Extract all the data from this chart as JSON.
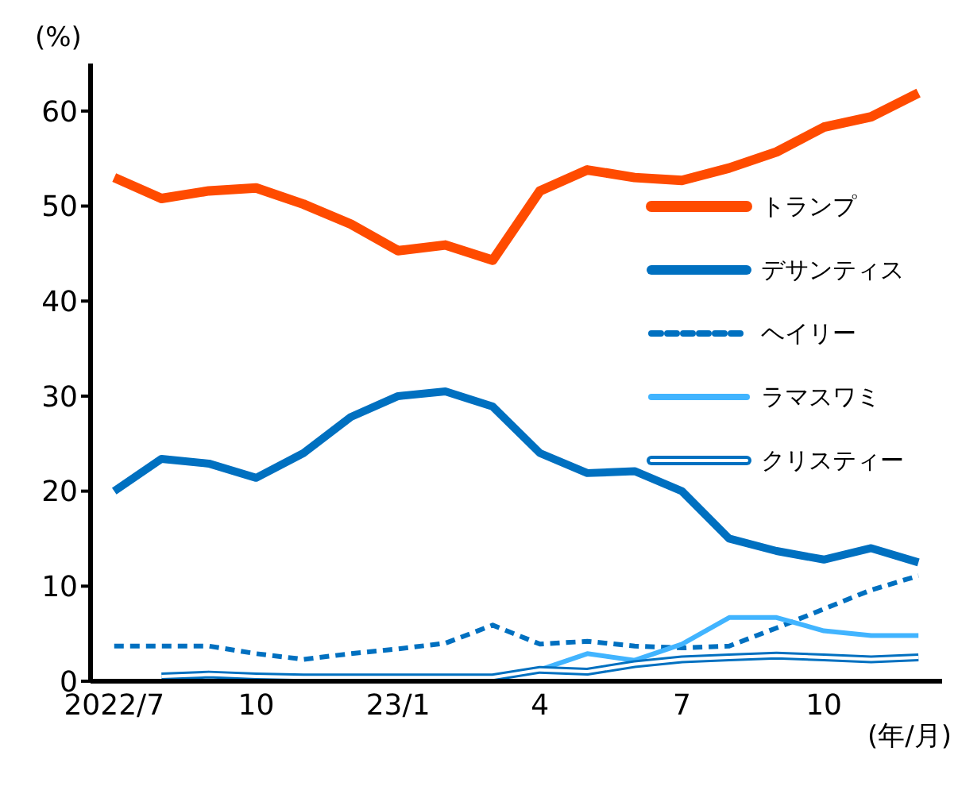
{
  "chart_data": {
    "type": "line",
    "ylabel": "(%)",
    "xlabel": "(年/月)",
    "categories": [
      "2022/7",
      null,
      null,
      "10",
      null,
      null,
      "23/1",
      null,
      null,
      "4",
      null,
      null,
      "7",
      null,
      null,
      "10",
      null,
      null
    ],
    "series": [
      {
        "name": "トランプ",
        "color": "#ff4b00",
        "values": [
          53,
          50.8,
          51.6,
          51.9,
          50.2,
          48.1,
          45.3,
          45.9,
          44.3,
          51.6,
          53.8,
          53,
          52.7,
          54,
          55.7,
          58.3,
          59.4,
          61.9
        ]
      },
      {
        "name": "デサンティス",
        "color": "#0070c0",
        "values": [
          20,
          23.4,
          22.9,
          21.4,
          24,
          27.8,
          30,
          30.5,
          28.9,
          24,
          21.9,
          22.1,
          20,
          15,
          13.7,
          12.8,
          14,
          12.5
        ]
      },
      {
        "name": "ヘイリー",
        "color": "#0070c0",
        "line_style": "dashed",
        "values": [
          3.7,
          3.7,
          3.7,
          2.9,
          2.3,
          2.9,
          3.4,
          4,
          5.9,
          3.9,
          4.2,
          3.7,
          3.5,
          3.7,
          5.6,
          7.6,
          9.6,
          11.1
        ]
      },
      {
        "name": "ラマスワミ",
        "color": "#41b4ff",
        "values": [
          null,
          null,
          null,
          null,
          null,
          null,
          null,
          null,
          0.3,
          1.2,
          2.9,
          2.2,
          3.9,
          6.7,
          6.7,
          5.3,
          4.8,
          4.8
        ]
      },
      {
        "name": "クリスティー",
        "color": "#0070c0",
        "values": [
          null,
          0.5,
          0.7,
          0.5,
          0.4,
          0.4,
          0.4,
          0.4,
          0.4,
          1.2,
          1.0,
          1.8,
          2.3,
          2.5,
          2.7,
          2.5,
          2.3,
          2.5
        ]
      }
    ],
    "ylim": [
      0,
      65
    ],
    "yticks": [
      0,
      10,
      20,
      30,
      40,
      50,
      60
    ],
    "grid": false,
    "legend": "right",
    "marker": "none",
    "line_style": "solid"
  }
}
